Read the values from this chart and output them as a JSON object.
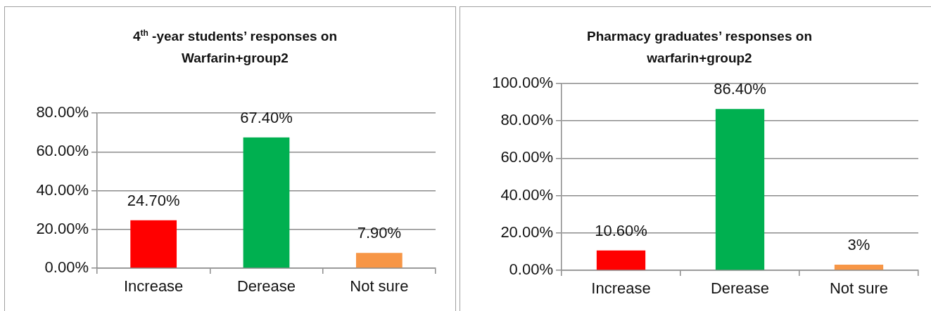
{
  "chart_data": [
    {
      "type": "bar",
      "title": "4$^{th}$ -year students’ responses on Warfarin+group2",
      "categories": [
        "Increase",
        "Derease",
        "Not sure"
      ],
      "values": [
        24.7,
        67.4,
        7.9
      ],
      "colors": [
        "#ff0000",
        "#00b050",
        "#f79646"
      ],
      "value_labels": [
        "24.70%",
        "67.40%",
        "7.90%"
      ],
      "ylim": [
        0,
        80
      ],
      "yticks": [
        {
          "value": 0,
          "label": "0.00%"
        },
        {
          "value": 20,
          "label": "20.00%"
        },
        {
          "value": 40,
          "label": "40.00%"
        },
        {
          "value": 60,
          "label": "60.00%"
        },
        {
          "value": 80,
          "label": "80.00%"
        }
      ],
      "grid": "y"
    },
    {
      "type": "bar",
      "title": "Pharmacy graduates’ responses on warfarin+group2",
      "categories": [
        "Increase",
        "Derease",
        "Not sure"
      ],
      "values": [
        10.6,
        86.4,
        3
      ],
      "colors": [
        "#ff0000",
        "#00b050",
        "#f79646"
      ],
      "value_labels": [
        "10.60%",
        "86.40%",
        "3%"
      ],
      "ylim": [
        0,
        100
      ],
      "yticks": [
        {
          "value": 0,
          "label": "0.00%"
        },
        {
          "value": 20,
          "label": "20.00%"
        },
        {
          "value": 40,
          "label": "40.00%"
        },
        {
          "value": 60,
          "label": "60.00%"
        },
        {
          "value": 80,
          "label": "80.00%"
        },
        {
          "value": 100,
          "label": "100.00%"
        }
      ],
      "grid": "y"
    }
  ]
}
